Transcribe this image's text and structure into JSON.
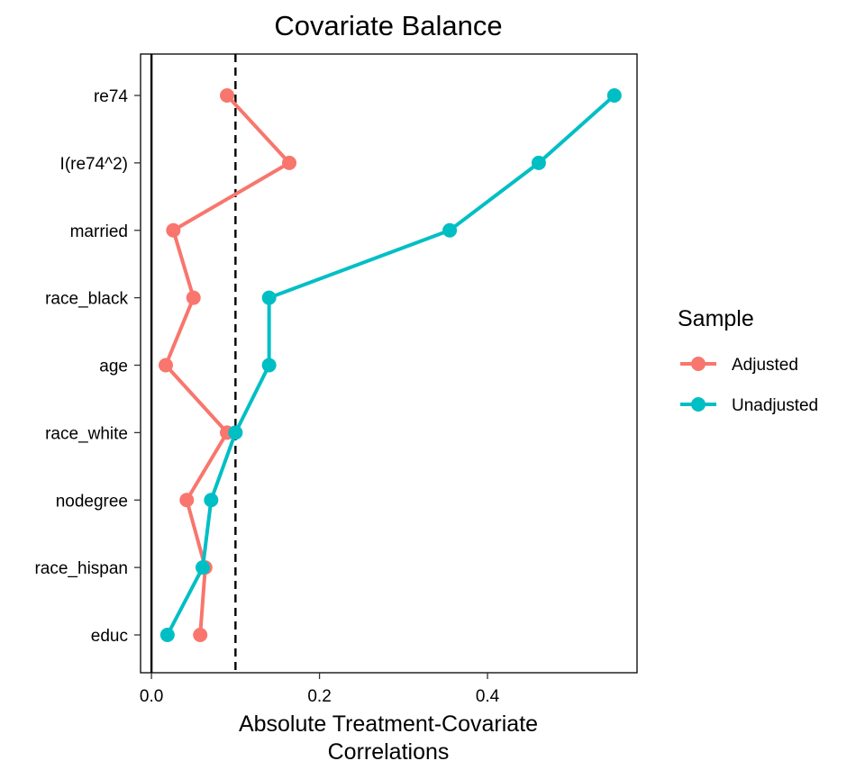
{
  "chart_data": {
    "type": "line",
    "title": "Covariate Balance",
    "xlabel": [
      "Absolute Treatment-Covariate",
      "Correlations"
    ],
    "ylabel": "",
    "xlim": [
      -0.013,
      0.578
    ],
    "x_ticks": [
      {
        "value": 0.0,
        "label": "0.0"
      },
      {
        "value": 0.2,
        "label": "0.2"
      },
      {
        "value": 0.4,
        "label": "0.4"
      }
    ],
    "categories": [
      "re74",
      "I(re74^2)",
      "married",
      "race_black",
      "age",
      "race_white",
      "nodegree",
      "race_hispan",
      "educ"
    ],
    "reference_lines": [
      {
        "x": 0.0,
        "style": "solid"
      },
      {
        "x": 0.1,
        "style": "dashed"
      }
    ],
    "grid": false,
    "legend": {
      "title": "Sample",
      "position": "right"
    },
    "series": [
      {
        "name": "Adjusted",
        "color": "#F8766D",
        "values": [
          0.09,
          0.164,
          0.026,
          0.05,
          0.017,
          0.09,
          0.042,
          0.064,
          0.058
        ]
      },
      {
        "name": "Unadjusted",
        "color": "#00BFC4",
        "values": [
          0.551,
          0.461,
          0.355,
          0.14,
          0.14,
          0.1,
          0.071,
          0.061,
          0.019
        ]
      }
    ]
  }
}
